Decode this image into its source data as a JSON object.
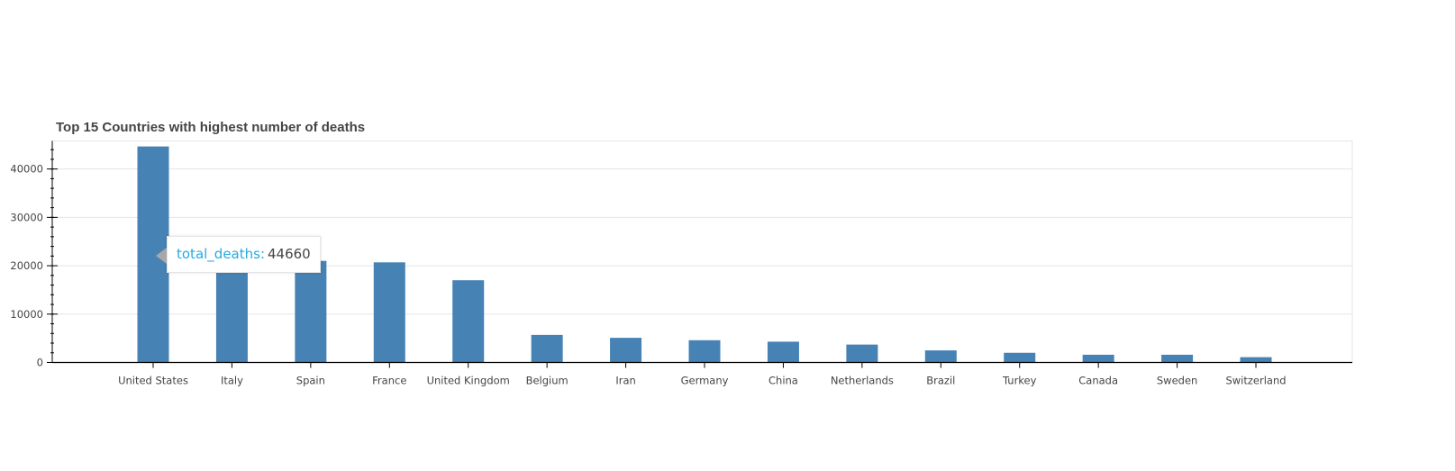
{
  "colors": {
    "bar": "#4682b4",
    "axis": "#000000",
    "grid": "#e5e5e5",
    "text": "#444444",
    "tooltip_key": "#26aae1"
  },
  "chart_data": {
    "type": "bar",
    "title": "Top 15 Countries with highest number of deaths",
    "xlabel": "",
    "ylabel": "",
    "categories": [
      "United States",
      "Italy",
      "Spain",
      "France",
      "United Kingdom",
      "Belgium",
      "Iran",
      "Germany",
      "China",
      "Netherlands",
      "Brazil",
      "Turkey",
      "Canada",
      "Sweden",
      "Switzerland"
    ],
    "values": [
      44660,
      24100,
      21000,
      20700,
      17000,
      5700,
      5100,
      4600,
      4300,
      3700,
      2500,
      2000,
      1600,
      1600,
      1100
    ],
    "ylim": [
      0,
      45800
    ],
    "yticks": [
      0,
      10000,
      20000,
      30000,
      40000
    ],
    "grid": true,
    "legend": "none"
  },
  "tooltip": {
    "key": "total_deaths:",
    "value": "44660"
  }
}
